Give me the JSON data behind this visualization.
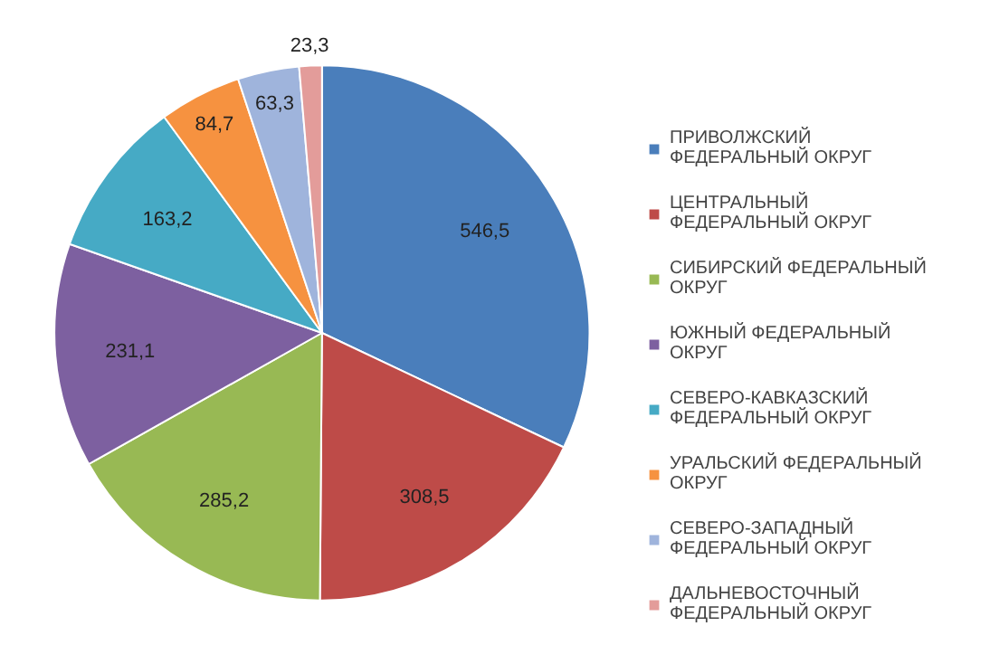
{
  "chart_data": {
    "type": "pie",
    "categories": [
      "ПРИВОЛЖСКИЙ ФЕДЕРАЛЬНЫЙ ОКРУГ",
      "ЦЕНТРАЛЬНЫЙ ФЕДЕРАЛЬНЫЙ ОКРУГ",
      "СИБИРСКИЙ ФЕДЕРАЛЬНЫЙ ОКРУГ",
      "ЮЖНЫЙ ФЕДЕРАЛЬНЫЙ ОКРУГ",
      "СЕВЕРО-КАВКАЗСКИЙ ФЕДЕРАЛЬНЫЙ ОКРУГ",
      "УРАЛЬСКИЙ ФЕДЕРАЛЬНЫЙ ОКРУГ",
      "СЕВЕРО-ЗАПАДНЫЙ ФЕДЕРАЛЬНЫЙ ОКРУГ",
      "ДАЛЬНЕВОСТОЧНЫЙ ФЕДЕРАЛЬНЫЙ ОКРУГ"
    ],
    "values": [
      546.5,
      308.5,
      285.2,
      231.1,
      163.2,
      84.7,
      63.3,
      23.3
    ],
    "value_labels": [
      "546,5",
      "308,5",
      "285,2",
      "231,1",
      "163,2",
      "84,7",
      "63,3",
      "23,3"
    ],
    "colors": [
      "#4a7ebb",
      "#be4b48",
      "#98b954",
      "#7d60a0",
      "#46aac5",
      "#f69240",
      "#9fb4dc",
      "#e39c9a"
    ],
    "legend": "right"
  }
}
